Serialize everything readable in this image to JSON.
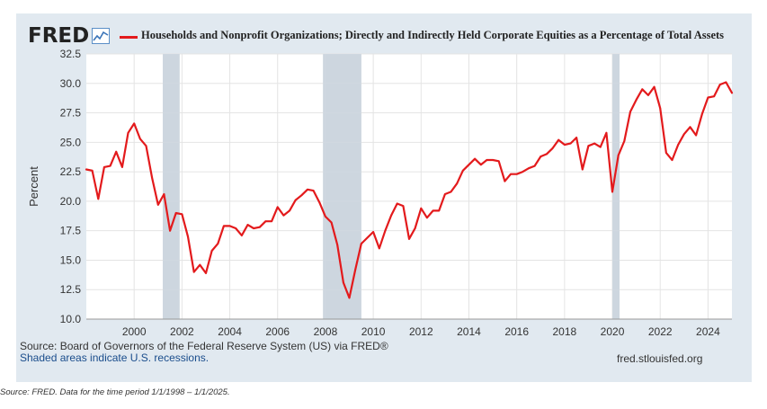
{
  "header": {
    "logo_text": "FRED",
    "logo_icon": "line-chart-icon",
    "title": "Households and Nonprofit Organizations; Directly and Indirectly Held Corporate Equities as a Percentage of Total Assets",
    "series_color": "#e31a1c"
  },
  "footer": {
    "source": "Source: Board of Governors of the Federal Reserve System (US) via FRED®",
    "shaded_note": "Shaded areas indicate U.S. recessions.",
    "site": "fred.stlouisfed.org",
    "caption": "Source: FRED. Data for the time period 1/1/1998 – 1/1/2025."
  },
  "colors": {
    "background": "#e1e9f0",
    "plot": "#ffffff",
    "recession": "#cdd6df",
    "line": "#e31a1c"
  },
  "chart_data": {
    "type": "line",
    "ylabel": "Percent",
    "xlim": [
      1998,
      2025
    ],
    "ylim": [
      10,
      32.5
    ],
    "yticks": [
      "10.0",
      "12.5",
      "15.0",
      "17.5",
      "20.0",
      "22.5",
      "25.0",
      "27.5",
      "30.0",
      "32.5"
    ],
    "xticks": [
      "2000",
      "2002",
      "2004",
      "2006",
      "2008",
      "2010",
      "2012",
      "2014",
      "2016",
      "2018",
      "2020",
      "2022",
      "2024"
    ],
    "grid": true,
    "recessions": [
      [
        2001.2,
        2001.9
      ],
      [
        2007.9,
        2009.5
      ],
      [
        2020.0,
        2020.3
      ]
    ],
    "series": [
      {
        "x": [
          1998.0,
          1998.25,
          1998.5,
          1998.75,
          1999.0,
          1999.25,
          1999.5,
          1999.75,
          2000.0,
          2000.25,
          2000.5,
          2000.75,
          2001.0,
          2001.25,
          2001.5,
          2001.75,
          2002.0,
          2002.25,
          2002.5,
          2002.75,
          2003.0,
          2003.25,
          2003.5,
          2003.75,
          2004.0,
          2004.25,
          2004.5,
          2004.75,
          2005.0,
          2005.25,
          2005.5,
          2005.75,
          2006.0,
          2006.25,
          2006.5,
          2006.75,
          2007.0,
          2007.25,
          2007.5,
          2007.75,
          2008.0,
          2008.25,
          2008.5,
          2008.75,
          2009.0,
          2009.25,
          2009.5,
          2009.75,
          2010.0,
          2010.25,
          2010.5,
          2010.75,
          2011.0,
          2011.25,
          2011.5,
          2011.75,
          2012.0,
          2012.25,
          2012.5,
          2012.75,
          2013.0,
          2013.25,
          2013.5,
          2013.75,
          2014.0,
          2014.25,
          2014.5,
          2014.75,
          2015.0,
          2015.25,
          2015.5,
          2015.75,
          2016.0,
          2016.25,
          2016.5,
          2016.75,
          2017.0,
          2017.25,
          2017.5,
          2017.75,
          2018.0,
          2018.25,
          2018.5,
          2018.75,
          2019.0,
          2019.25,
          2019.5,
          2019.75,
          2020.0,
          2020.25,
          2020.5,
          2020.75,
          2021.0,
          2021.25,
          2021.5,
          2021.75,
          2022.0,
          2022.25,
          2022.5,
          2022.75,
          2023.0,
          2023.25,
          2023.5,
          2023.75,
          2024.0,
          2024.25,
          2024.5,
          2024.75,
          2025.0
        ],
        "values": [
          22.7,
          22.6,
          20.2,
          22.9,
          23.0,
          24.2,
          22.9,
          25.8,
          26.6,
          25.3,
          24.7,
          22.0,
          19.7,
          20.6,
          17.5,
          19.0,
          18.9,
          17.0,
          14.0,
          14.6,
          13.9,
          15.8,
          16.4,
          17.9,
          17.9,
          17.7,
          17.1,
          18.0,
          17.7,
          17.8,
          18.3,
          18.3,
          19.5,
          18.8,
          19.2,
          20.1,
          20.5,
          21.0,
          20.9,
          19.9,
          18.7,
          18.2,
          16.3,
          13.1,
          11.8,
          14.2,
          16.4,
          16.9,
          17.4,
          16.0,
          17.5,
          18.8,
          19.8,
          19.6,
          16.8,
          17.7,
          19.4,
          18.6,
          19.2,
          19.2,
          20.6,
          20.8,
          21.5,
          22.6,
          23.1,
          23.6,
          23.1,
          23.5,
          23.5,
          23.4,
          21.7,
          22.3,
          22.3,
          22.5,
          22.8,
          23.0,
          23.8,
          24.0,
          24.5,
          25.2,
          24.8,
          24.9,
          25.4,
          22.7,
          24.7,
          24.9,
          24.6,
          25.8,
          20.8,
          23.9,
          25.1,
          27.6,
          28.6,
          29.5,
          29.0,
          29.7,
          27.9,
          24.1,
          23.5,
          24.8,
          25.7,
          26.3,
          25.6,
          27.4,
          28.8,
          28.9,
          29.9,
          30.1,
          29.2
        ]
      }
    ]
  }
}
